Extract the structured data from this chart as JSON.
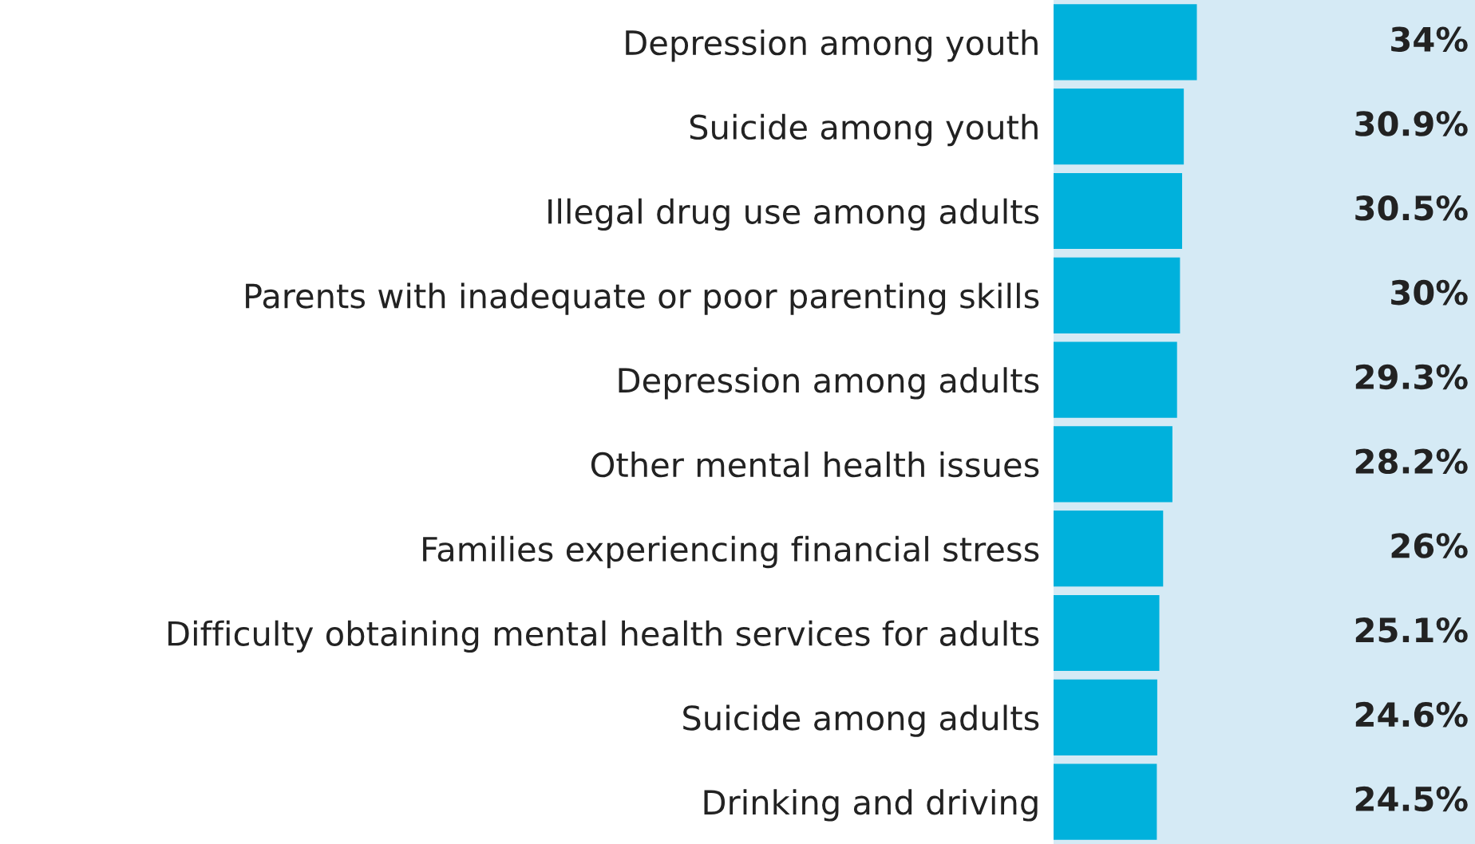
{
  "chart_data": {
    "type": "bar",
    "orientation": "horizontal",
    "categories": [
      "Depression among youth",
      "Suicide among youth",
      "Illegal drug use among adults",
      "Parents with inadequate or poor parenting skills",
      "Depression among adults",
      "Other mental health issues",
      "Families experiencing financial stress",
      "Difficulty obtaining mental health services for adults",
      "Suicide among adults",
      "Drinking and driving"
    ],
    "values": [
      34,
      30.9,
      30.5,
      30,
      29.3,
      28.2,
      26,
      25.1,
      24.6,
      24.5
    ],
    "value_labels": [
      "34%",
      "30.9%",
      "30.5%",
      "30%",
      "29.3%",
      "28.2%",
      "26%",
      "25.1%",
      "24.6%",
      "24.5%"
    ],
    "color": "#00b1dc",
    "xlim": [
      0,
      100
    ],
    "tick_labels": "y",
    "grid": false,
    "legend": false
  }
}
